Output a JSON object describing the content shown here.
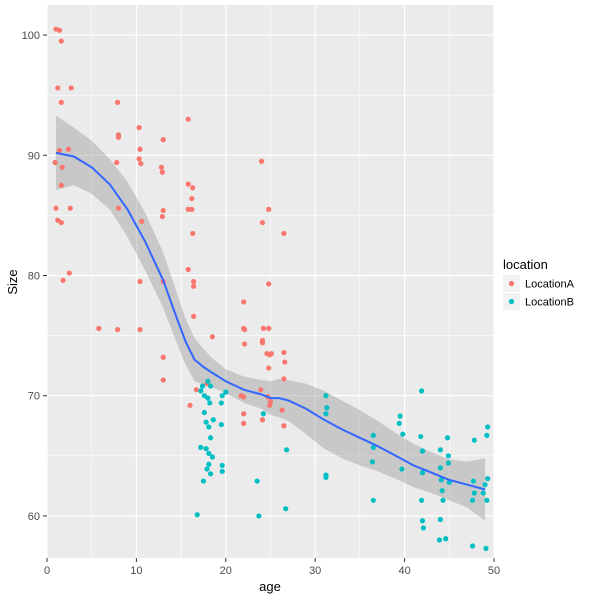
{
  "chart_data": {
    "type": "scatter",
    "title": "",
    "xlabel": "age",
    "ylabel": "Size",
    "xlim": [
      0,
      50
    ],
    "ylim": [
      56.5,
      102.5
    ],
    "x_ticks": [
      0,
      10,
      20,
      30,
      40,
      50
    ],
    "y_ticks": [
      60,
      70,
      80,
      90,
      100
    ],
    "grid": true,
    "legend": {
      "title": "location",
      "position": "right"
    },
    "colors": {
      "LocationA": "#F8766D",
      "LocationB": "#00BFC4",
      "smooth": "#3366FF",
      "band": "#999999",
      "panel": "#EBEBEB",
      "grid": "#FFFFFF"
    },
    "series": [
      {
        "name": "LocationA",
        "points": [
          [
            1.0,
            100.5
          ],
          [
            1.4,
            100.4
          ],
          [
            1.6,
            99.5
          ],
          [
            1.2,
            95.6
          ],
          [
            2.7,
            95.6
          ],
          [
            1.6,
            94.4
          ],
          [
            1.4,
            90.4
          ],
          [
            2.4,
            90.5
          ],
          [
            0.9,
            89.4
          ],
          [
            1.7,
            89.0
          ],
          [
            1.6,
            87.5
          ],
          [
            1.0,
            85.6
          ],
          [
            2.6,
            85.6
          ],
          [
            1.2,
            84.6
          ],
          [
            1.6,
            84.4
          ],
          [
            2.5,
            80.2
          ],
          [
            1.8,
            79.6
          ],
          [
            7.9,
            94.4
          ],
          [
            8.0,
            91.7
          ],
          [
            8.0,
            91.5
          ],
          [
            10.3,
            92.3
          ],
          [
            10.4,
            90.5
          ],
          [
            10.3,
            89.7
          ],
          [
            10.5,
            89.3
          ],
          [
            7.8,
            89.4
          ],
          [
            8.0,
            85.6
          ],
          [
            10.6,
            84.5
          ],
          [
            13.0,
            91.3
          ],
          [
            12.8,
            89.0
          ],
          [
            12.9,
            88.6
          ],
          [
            13.0,
            85.4
          ],
          [
            12.9,
            84.9
          ],
          [
            10.4,
            79.5
          ],
          [
            13.0,
            79.5
          ],
          [
            5.8,
            75.6
          ],
          [
            7.9,
            75.5
          ],
          [
            10.4,
            75.5
          ],
          [
            13.0,
            73.2
          ],
          [
            13.0,
            71.3
          ],
          [
            15.8,
            93.0
          ],
          [
            15.8,
            87.6
          ],
          [
            16.3,
            87.3
          ],
          [
            16.2,
            86.4
          ],
          [
            16.2,
            85.5
          ],
          [
            15.8,
            85.5
          ],
          [
            16.3,
            83.5
          ],
          [
            15.8,
            80.5
          ],
          [
            16.4,
            79.5
          ],
          [
            16.4,
            79.1
          ],
          [
            16.4,
            76.6
          ],
          [
            18.5,
            74.9
          ],
          [
            16.7,
            70.5
          ],
          [
            16.0,
            69.2
          ],
          [
            17.9,
            71.0
          ],
          [
            24.0,
            89.5
          ],
          [
            24.8,
            85.5
          ],
          [
            24.1,
            84.4
          ],
          [
            24.8,
            79.3
          ],
          [
            24.8,
            75.6
          ],
          [
            22.0,
            77.8
          ],
          [
            22.0,
            75.6
          ],
          [
            22.1,
            75.5
          ],
          [
            24.2,
            75.6
          ],
          [
            24.1,
            74.6
          ],
          [
            24.1,
            74.4
          ],
          [
            22.1,
            74.3
          ],
          [
            24.6,
            73.5
          ],
          [
            24.9,
            73.4
          ],
          [
            25.1,
            73.5
          ],
          [
            24.8,
            72.3
          ],
          [
            26.5,
            83.5
          ],
          [
            26.5,
            73.6
          ],
          [
            26.6,
            72.8
          ],
          [
            26.5,
            71.4
          ],
          [
            21.7,
            70.0
          ],
          [
            22.0,
            69.9
          ],
          [
            23.9,
            70.5
          ],
          [
            24.7,
            69.9
          ],
          [
            25.0,
            69.5
          ],
          [
            24.9,
            69.2
          ],
          [
            22.0,
            68.5
          ],
          [
            22.0,
            67.7
          ],
          [
            24.1,
            68.0
          ],
          [
            26.3,
            68.8
          ],
          [
            26.5,
            67.5
          ]
        ]
      },
      {
        "name": "LocationB",
        "points": [
          [
            17.4,
            70.8
          ],
          [
            18.0,
            71.2
          ],
          [
            18.3,
            70.8
          ],
          [
            17.2,
            70.4
          ],
          [
            17.6,
            70.0
          ],
          [
            18.0,
            69.8
          ],
          [
            18.2,
            69.4
          ],
          [
            17.6,
            68.6
          ],
          [
            18.6,
            68.0
          ],
          [
            17.8,
            67.8
          ],
          [
            18.1,
            67.4
          ],
          [
            18.3,
            66.5
          ],
          [
            19.6,
            70.0
          ],
          [
            19.5,
            69.4
          ],
          [
            20.0,
            70.3
          ],
          [
            19.5,
            67.6
          ],
          [
            17.2,
            65.7
          ],
          [
            17.8,
            65.6
          ],
          [
            18.1,
            65.2
          ],
          [
            18.5,
            64.9
          ],
          [
            18.1,
            64.3
          ],
          [
            17.9,
            63.9
          ],
          [
            18.3,
            63.5
          ],
          [
            19.6,
            64.2
          ],
          [
            19.6,
            63.7
          ],
          [
            17.5,
            62.9
          ],
          [
            16.8,
            60.1
          ],
          [
            23.5,
            62.9
          ],
          [
            23.7,
            60.0
          ],
          [
            26.8,
            65.5
          ],
          [
            26.7,
            60.6
          ],
          [
            24.2,
            68.5
          ],
          [
            31.2,
            70.0
          ],
          [
            31.3,
            69.0
          ],
          [
            31.2,
            68.5
          ],
          [
            31.2,
            63.4
          ],
          [
            31.2,
            63.2
          ],
          [
            36.5,
            66.7
          ],
          [
            36.5,
            65.7
          ],
          [
            36.4,
            64.5
          ],
          [
            36.5,
            61.3
          ],
          [
            39.5,
            68.3
          ],
          [
            39.4,
            67.7
          ],
          [
            39.8,
            66.8
          ],
          [
            39.7,
            63.9
          ],
          [
            41.9,
            70.4
          ],
          [
            41.8,
            66.6
          ],
          [
            42.0,
            65.4
          ],
          [
            42.0,
            63.6
          ],
          [
            41.9,
            61.3
          ],
          [
            42.0,
            59.6
          ],
          [
            42.1,
            59.0
          ],
          [
            44.0,
            65.5
          ],
          [
            44.0,
            64.0
          ],
          [
            44.1,
            63.0
          ],
          [
            44.2,
            62.1
          ],
          [
            44.3,
            61.3
          ],
          [
            44.0,
            59.7
          ],
          [
            43.9,
            58.0
          ],
          [
            44.6,
            58.1
          ],
          [
            44.8,
            66.5
          ],
          [
            44.9,
            65.0
          ],
          [
            44.9,
            64.4
          ],
          [
            45.0,
            62.8
          ],
          [
            47.8,
            66.3
          ],
          [
            47.7,
            62.9
          ],
          [
            47.8,
            61.9
          ],
          [
            47.6,
            61.3
          ],
          [
            47.6,
            57.5
          ],
          [
            49.3,
            67.4
          ],
          [
            49.2,
            66.7
          ],
          [
            49.3,
            63.1
          ],
          [
            49.0,
            62.6
          ],
          [
            48.8,
            61.9
          ],
          [
            49.2,
            61.3
          ],
          [
            49.1,
            57.3
          ]
        ]
      }
    ],
    "smooth": {
      "method": "loess",
      "fit": [
        [
          1,
          90.2
        ],
        [
          3,
          89.9
        ],
        [
          5,
          89.0
        ],
        [
          7,
          87.6
        ],
        [
          9,
          85.5
        ],
        [
          11,
          82.8
        ],
        [
          13,
          79.6
        ],
        [
          14.5,
          76.5
        ],
        [
          15.5,
          74.5
        ],
        [
          16.5,
          73.0
        ],
        [
          17.5,
          72.4
        ],
        [
          18.5,
          71.9
        ],
        [
          20,
          71.2
        ],
        [
          22,
          70.5
        ],
        [
          24,
          70.1
        ],
        [
          25,
          69.8
        ],
        [
          26,
          69.8
        ],
        [
          27,
          69.6
        ],
        [
          29,
          68.9
        ],
        [
          31,
          68.0
        ],
        [
          33,
          67.2
        ],
        [
          35,
          66.5
        ],
        [
          37,
          65.8
        ],
        [
          39,
          65.0
        ],
        [
          41,
          64.2
        ],
        [
          43,
          63.6
        ],
        [
          45,
          63.0
        ],
        [
          47,
          62.6
        ],
        [
          49,
          62.2
        ]
      ],
      "upper": [
        [
          1,
          93.3
        ],
        [
          3,
          92.3
        ],
        [
          5,
          91.2
        ],
        [
          7,
          89.7
        ],
        [
          9,
          87.8
        ],
        [
          11,
          85.2
        ],
        [
          13,
          81.9
        ],
        [
          14.5,
          78.6
        ],
        [
          15.5,
          76.4
        ],
        [
          16.5,
          74.8
        ],
        [
          17.5,
          73.9
        ],
        [
          18.5,
          73.1
        ],
        [
          20,
          72.2
        ],
        [
          22,
          71.6
        ],
        [
          24,
          71.3
        ],
        [
          25,
          71.2
        ],
        [
          26,
          71.4
        ],
        [
          27,
          71.3
        ],
        [
          29,
          71.0
        ],
        [
          31,
          70.4
        ],
        [
          33,
          69.6
        ],
        [
          35,
          68.8
        ],
        [
          37,
          67.9
        ],
        [
          39,
          66.9
        ],
        [
          41,
          66.0
        ],
        [
          43,
          65.3
        ],
        [
          45,
          64.7
        ],
        [
          47,
          64.5
        ],
        [
          49,
          64.8
        ]
      ],
      "lower": [
        [
          1,
          87.1
        ],
        [
          3,
          87.5
        ],
        [
          5,
          86.8
        ],
        [
          7,
          85.5
        ],
        [
          9,
          83.2
        ],
        [
          11,
          80.4
        ],
        [
          13,
          77.3
        ],
        [
          14.5,
          74.4
        ],
        [
          15.5,
          72.6
        ],
        [
          16.5,
          71.2
        ],
        [
          17.5,
          70.9
        ],
        [
          18.5,
          70.7
        ],
        [
          20,
          70.2
        ],
        [
          22,
          69.4
        ],
        [
          24,
          68.9
        ],
        [
          25,
          68.4
        ],
        [
          26,
          68.2
        ],
        [
          27,
          67.9
        ],
        [
          29,
          66.8
        ],
        [
          31,
          65.6
        ],
        [
          33,
          64.8
        ],
        [
          35,
          64.2
        ],
        [
          37,
          63.7
        ],
        [
          39,
          63.1
        ],
        [
          41,
          62.4
        ],
        [
          43,
          61.9
        ],
        [
          45,
          61.3
        ],
        [
          47,
          60.7
        ],
        [
          49,
          59.6
        ]
      ]
    }
  }
}
